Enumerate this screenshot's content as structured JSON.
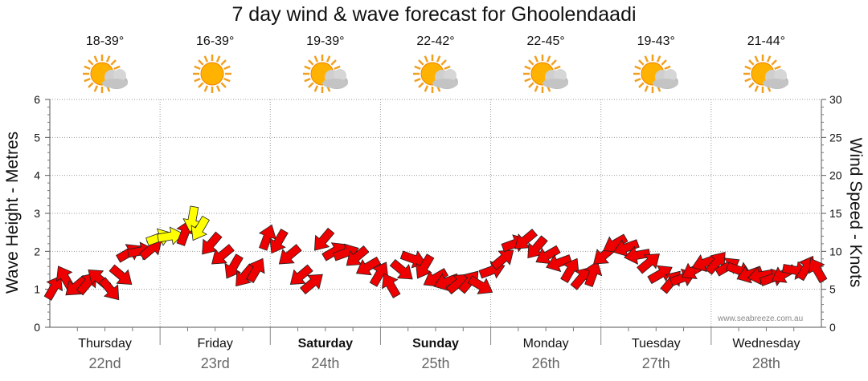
{
  "chart_data": {
    "type": "line",
    "title": "7 day wind & wave forecast for Ghoolendaadi",
    "ylabel": "Wave Height - Metres",
    "ylabel_right": "Wind Speed - Knots",
    "ylim": [
      0,
      6
    ],
    "ylim_right": [
      0,
      30
    ],
    "yticks_left": [
      "0",
      "1",
      "2",
      "3",
      "4",
      "5",
      "6"
    ],
    "yticks_right": [
      "0",
      "5",
      "10",
      "15",
      "20",
      "25",
      "30"
    ],
    "days": [
      {
        "day": "Thursday",
        "date": "22nd",
        "temp": "18-39°",
        "weather": "partly-cloudy",
        "bold": false
      },
      {
        "day": "Friday",
        "date": "23rd",
        "temp": "16-39°",
        "weather": "sunny",
        "bold": false
      },
      {
        "day": "Saturday",
        "date": "24th",
        "temp": "19-39°",
        "weather": "partly-cloudy",
        "bold": true
      },
      {
        "day": "Sunday",
        "date": "25th",
        "temp": "22-42°",
        "weather": "partly-cloudy",
        "bold": true
      },
      {
        "day": "Monday",
        "date": "26th",
        "temp": "22-45°",
        "weather": "partly-cloudy",
        "bold": false
      },
      {
        "day": "Tuesday",
        "date": "27th",
        "temp": "19-43°",
        "weather": "partly-cloudy",
        "bold": false
      },
      {
        "day": "Wednesday",
        "date": "28th",
        "temp": "21-44°",
        "weather": "partly-cloudy",
        "bold": false
      }
    ],
    "series": [
      {
        "name": "Wind Speed (knots)",
        "unit": "knots",
        "points": [
          [
            0.0,
            5.2,
            "red"
          ],
          [
            0.15,
            6.5,
            "red"
          ],
          [
            0.3,
            5.4,
            "red"
          ],
          [
            0.45,
            5.8,
            "red"
          ],
          [
            0.6,
            6.4,
            "red"
          ],
          [
            0.75,
            5.0,
            "red"
          ],
          [
            0.9,
            6.8,
            "red"
          ],
          [
            1.0,
            9.8,
            "red"
          ],
          [
            1.15,
            10.0,
            "red"
          ],
          [
            1.3,
            10.3,
            "red"
          ],
          [
            1.4,
            11.8,
            "yellow"
          ],
          [
            1.55,
            12.0,
            "yellow"
          ],
          [
            1.75,
            12.4,
            "red"
          ],
          [
            1.85,
            14.3,
            "yellow"
          ],
          [
            1.95,
            13.0,
            "yellow"
          ],
          [
            2.1,
            11.0,
            "red"
          ],
          [
            2.25,
            9.5,
            "red"
          ],
          [
            2.4,
            8.0,
            "red"
          ],
          [
            2.55,
            6.8,
            "red"
          ],
          [
            2.7,
            7.5,
            "red"
          ],
          [
            2.85,
            11.8,
            "red"
          ],
          [
            3.0,
            11.3,
            "red"
          ],
          [
            3.15,
            9.5,
            "red"
          ],
          [
            3.3,
            6.8,
            "red"
          ],
          [
            3.45,
            5.8,
            "red"
          ],
          [
            3.6,
            11.5,
            "red"
          ],
          [
            3.75,
            10.0,
            "red"
          ],
          [
            3.9,
            9.8,
            "red"
          ],
          [
            4.05,
            9.3,
            "red"
          ],
          [
            4.2,
            8.0,
            "red"
          ],
          [
            4.35,
            7.0,
            "red"
          ],
          [
            4.5,
            5.5,
            "red"
          ],
          [
            4.65,
            7.5,
            "red"
          ],
          [
            4.8,
            9.0,
            "red"
          ],
          [
            4.95,
            8.0,
            "red"
          ],
          [
            5.1,
            6.5,
            "red"
          ],
          [
            5.25,
            6.0,
            "red"
          ],
          [
            5.4,
            5.8,
            "red"
          ],
          [
            5.55,
            6.0,
            "red"
          ],
          [
            5.7,
            5.5,
            "red"
          ],
          [
            5.85,
            7.5,
            "red"
          ],
          [
            6.0,
            9.0,
            "red"
          ],
          [
            6.15,
            11.0,
            "red"
          ],
          [
            6.3,
            11.5,
            "red"
          ],
          [
            6.45,
            10.5,
            "red"
          ],
          [
            6.6,
            9.5,
            "red"
          ],
          [
            6.75,
            8.5,
            "red"
          ],
          [
            6.9,
            7.5,
            "red"
          ],
          [
            7.05,
            6.5,
            "red"
          ],
          [
            7.2,
            7.0,
            "red"
          ],
          [
            7.35,
            9.5,
            "red"
          ],
          [
            7.5,
            11.0,
            "red"
          ],
          [
            7.65,
            10.5,
            "red"
          ],
          [
            7.8,
            9.5,
            "red"
          ],
          [
            7.95,
            8.5,
            "red"
          ],
          [
            8.1,
            7.0,
            "red"
          ],
          [
            8.25,
            6.0,
            "red"
          ],
          [
            8.4,
            6.5,
            "red"
          ],
          [
            8.55,
            7.5,
            "red"
          ],
          [
            8.7,
            8.5,
            "red"
          ],
          [
            8.85,
            8.5,
            "red"
          ],
          [
            9.0,
            8.0,
            "red"
          ],
          [
            9.15,
            7.5,
            "red"
          ],
          [
            9.3,
            7.0,
            "red"
          ],
          [
            9.45,
            6.8,
            "red"
          ],
          [
            9.6,
            6.5,
            "red"
          ],
          [
            9.75,
            7.0,
            "red"
          ],
          [
            9.9,
            7.5,
            "red"
          ],
          [
            10.05,
            7.8,
            "red"
          ],
          [
            10.2,
            7.5,
            "red"
          ]
        ]
      }
    ]
  },
  "credit": "www.seabreeze.com.au",
  "colors": {
    "arrow_red": "#ee0000",
    "arrow_yellow": "#ffff00",
    "grid": "#999999"
  }
}
